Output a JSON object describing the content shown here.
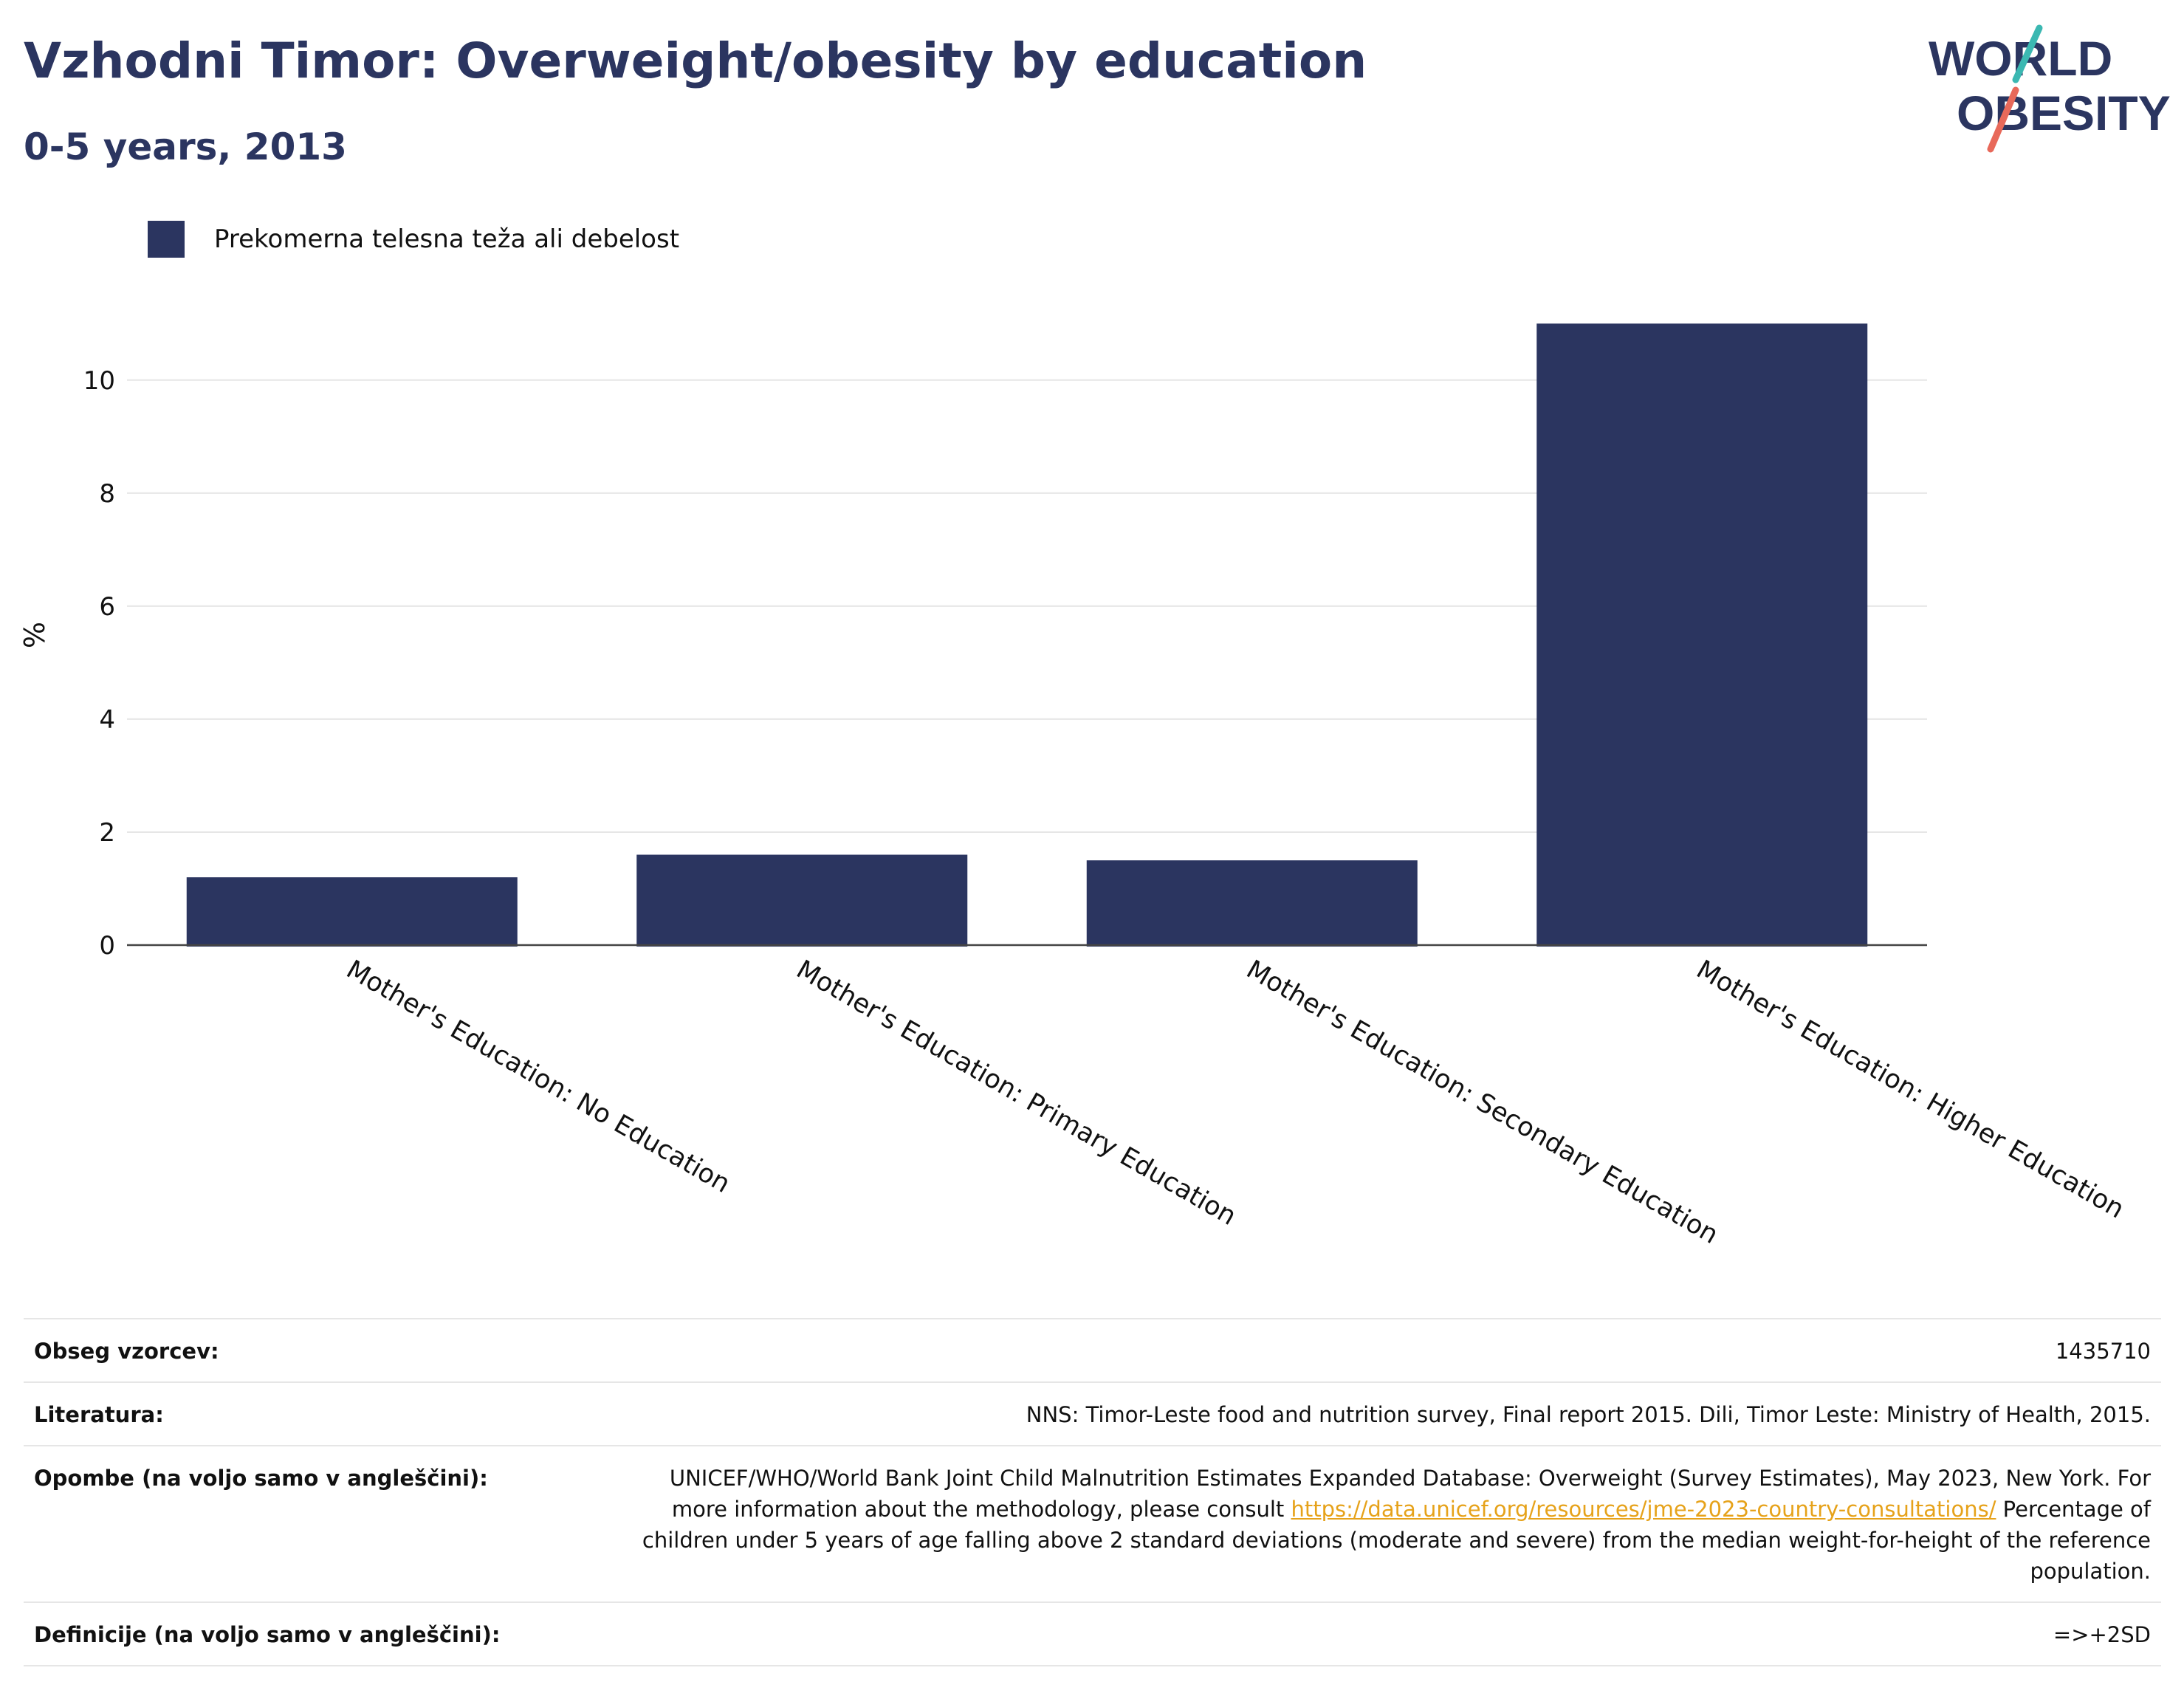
{
  "header": {
    "title": "Vzhodni Timor: Overweight/obesity by education",
    "subtitle": "0-5 years, 2013"
  },
  "logo": {
    "line1": "WORLD",
    "line2": "OBESITY",
    "icon": "world-obesity-logo",
    "colors": {
      "text": "#2b3560",
      "teal": "#3bb8b2",
      "coral": "#e8695a"
    }
  },
  "legend": {
    "items": [
      {
        "label": "Prekomerna telesna teža ali debelost",
        "color": "#2b3560"
      }
    ]
  },
  "chart_data": {
    "type": "bar",
    "categories": [
      "Mother's Education: No Education",
      "Mother's Education: Primary Education",
      "Mother's Education: Secondary Education",
      "Mother's Education: Higher Education"
    ],
    "series": [
      {
        "name": "Prekomerna telesna teža ali debelost",
        "values": [
          1.2,
          1.6,
          1.5,
          11.0
        ],
        "color": "#2b3560"
      }
    ],
    "ylabel": "%",
    "ylim": [
      0,
      11.5
    ],
    "yticks": [
      0,
      2,
      4,
      6,
      8,
      10
    ],
    "grid": true,
    "legend_position": "top-left"
  },
  "info": [
    {
      "label": "Obseg vzorcev:",
      "value": "1435710"
    },
    {
      "label": "Literatura:",
      "value": "NNS: Timor-Leste food and nutrition survey, Final report 2015. Dili, Timor Leste: Ministry of Health, 2015."
    },
    {
      "label": "Opombe (na voljo samo v angleščini):",
      "value_before": "UNICEF/WHO/World Bank Joint Child Malnutrition Estimates Expanded Database: Overweight (Survey Estimates), May 2023, New York. For more information about the methodology, please consult ",
      "link": "https://data.unicef.org/resources/jme-2023-country-consultations/",
      "value_after": " Percentage of children under 5 years of age falling above 2 standard deviations (moderate and severe) from the median weight-for-height of the reference population."
    },
    {
      "label": "Definicije (na voljo samo v angleščini):",
      "value": "=>+2SD"
    }
  ]
}
